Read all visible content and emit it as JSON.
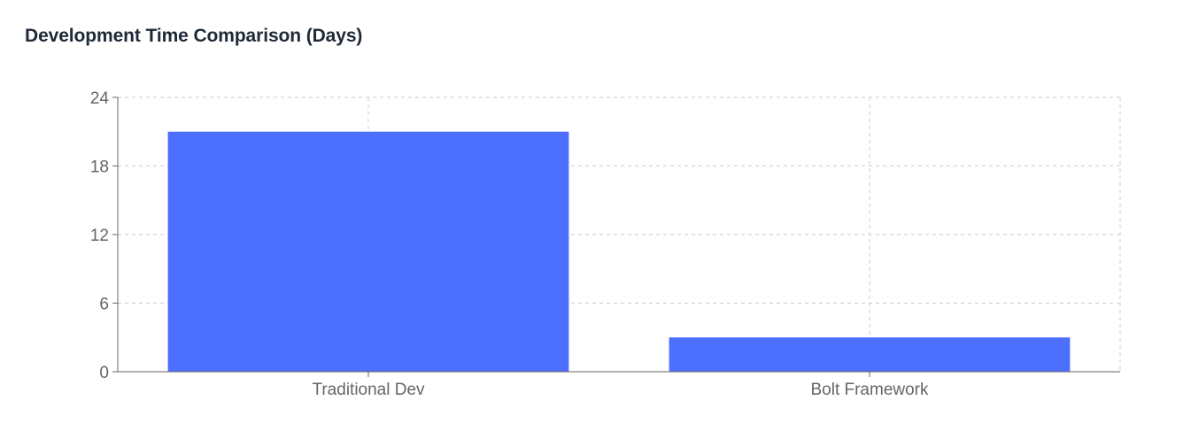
{
  "chart_data": {
    "type": "bar",
    "title": "Development Time Comparison (Days)",
    "xlabel": "",
    "ylabel": "",
    "categories": [
      "Traditional Dev",
      "Bolt Framework"
    ],
    "series": [
      {
        "values": [
          21,
          3
        ]
      }
    ],
    "ylim": [
      0,
      24
    ],
    "yticks": [
      0,
      6,
      12,
      18,
      24
    ],
    "grid": true,
    "legend": "none",
    "bar_color": "#4d6fff"
  }
}
